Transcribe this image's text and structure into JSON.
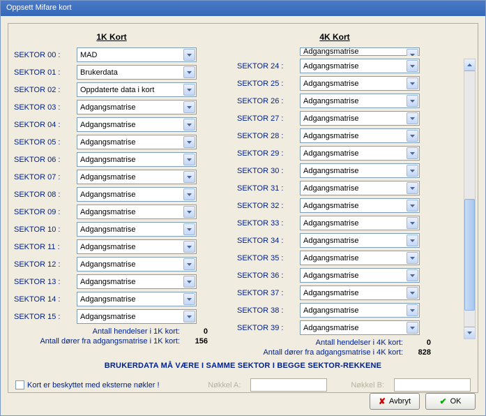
{
  "window": {
    "title": "Oppsett Mifare kort"
  },
  "headers": {
    "k1": "1K Kort",
    "k4": "4K Kort"
  },
  "sector_label_prefix": "SEKTOR",
  "k1": {
    "sectors": [
      {
        "n": "00",
        "value": "MAD"
      },
      {
        "n": "01",
        "value": "Brukerdata"
      },
      {
        "n": "02",
        "value": "Oppdaterte data i kort"
      },
      {
        "n": "03",
        "value": "Adgangsmatrise"
      },
      {
        "n": "04",
        "value": "Adgangsmatrise"
      },
      {
        "n": "05",
        "value": "Adgangsmatrise"
      },
      {
        "n": "06",
        "value": "Adgangsmatrise"
      },
      {
        "n": "07",
        "value": "Adgangsmatrise"
      },
      {
        "n": "08",
        "value": "Adgangsmatrise"
      },
      {
        "n": "09",
        "value": "Adgangsmatrise"
      },
      {
        "n": "10",
        "value": "Adgangsmatrise"
      },
      {
        "n": "11",
        "value": "Adgangsmatrise"
      },
      {
        "n": "12",
        "value": "Adgangsmatrise"
      },
      {
        "n": "13",
        "value": "Adgangsmatrise"
      },
      {
        "n": "14",
        "value": "Adgangsmatrise"
      },
      {
        "n": "15",
        "value": "Adgangsmatrise"
      }
    ],
    "stats": {
      "events_label": "Antall hendelser i 1K kort:",
      "events_value": "0",
      "doors_label": "Antall dører fra adgangsmatrise i 1K kort:",
      "doors_value": "156"
    }
  },
  "k4": {
    "partial_value": "Adgangsmatrise",
    "sectors": [
      {
        "n": "24",
        "value": "Adgangsmatrise"
      },
      {
        "n": "25",
        "value": "Adgangsmatrise"
      },
      {
        "n": "26",
        "value": "Adgangsmatrise"
      },
      {
        "n": "27",
        "value": "Adgangsmatrise"
      },
      {
        "n": "28",
        "value": "Adgangsmatrise"
      },
      {
        "n": "29",
        "value": "Adgangsmatrise"
      },
      {
        "n": "30",
        "value": "Adgangsmatrise"
      },
      {
        "n": "31",
        "value": "Adgangsmatrise"
      },
      {
        "n": "32",
        "value": "Adgangsmatrise"
      },
      {
        "n": "33",
        "value": "Adgangsmatrise"
      },
      {
        "n": "34",
        "value": "Adgangsmatrise"
      },
      {
        "n": "35",
        "value": "Adgangsmatrise"
      },
      {
        "n": "36",
        "value": "Adgangsmatrise"
      },
      {
        "n": "37",
        "value": "Adgangsmatrise"
      },
      {
        "n": "38",
        "value": "Adgangsmatrise"
      },
      {
        "n": "39",
        "value": "Adgangsmatrise"
      }
    ],
    "stats": {
      "events_label": "Antall hendelser i 4K kort:",
      "events_value": "0",
      "doors_label": "Antall dører fra adgangsmatrise i 4K kort:",
      "doors_value": "828"
    }
  },
  "warning": "BRUKERDATA MÅ VÆRE I SAMME SEKTOR I BEGGE SEKTOR-REKKENE",
  "bottom": {
    "checkbox_label": "Kort er beskyttet med eksterne nøkler !",
    "key_a_label": "Nøkkel A:",
    "key_b_label": "Nøkkel B:"
  },
  "buttons": {
    "cancel": "Avbryt",
    "ok": "OK"
  },
  "colors": {
    "titlebar": "#3568b8",
    "label_blue": "#002090",
    "combo_border": "#7f9db9"
  }
}
